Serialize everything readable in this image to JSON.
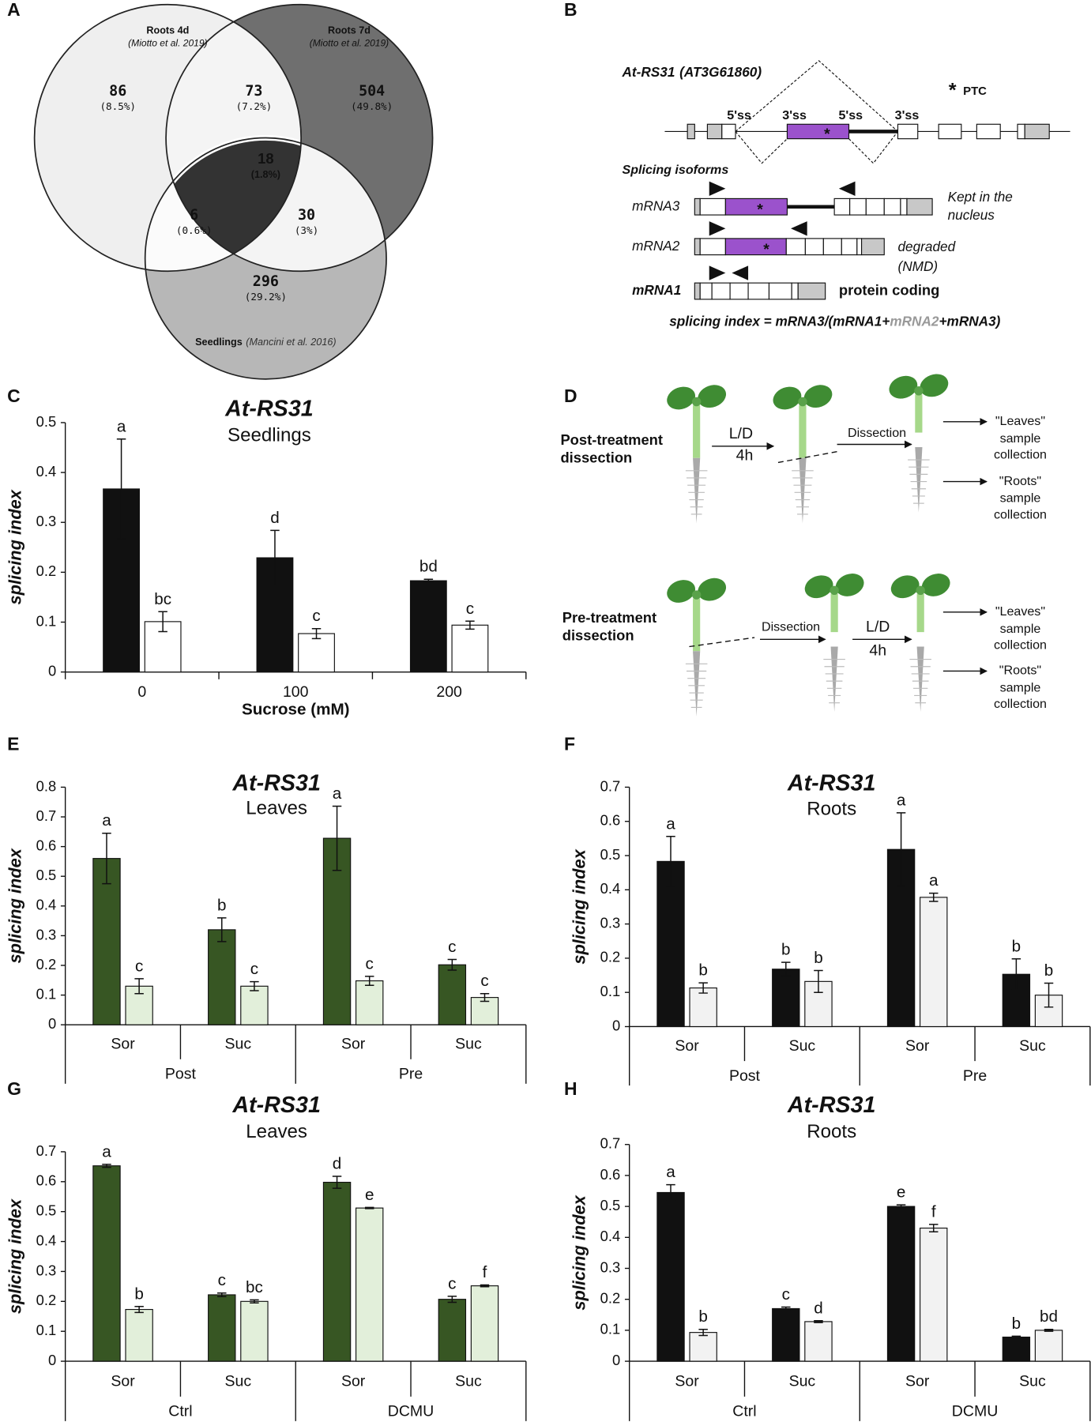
{
  "panel_labels": [
    "A",
    "B",
    "C",
    "D",
    "E",
    "F",
    "G",
    "H"
  ],
  "chart_data": [
    {
      "type": "venn",
      "sets": [
        {
          "name": "Roots 4d",
          "source": "(Miotto et al. 2019)",
          "color": "#efefef"
        },
        {
          "name": "Roots 7d",
          "source": "(Miotto et al. 2019)",
          "color": "#6f6f6f"
        },
        {
          "name": "Seedlings",
          "source": "(Mancini et al. 2016)",
          "color": "#b7b7b7"
        }
      ],
      "counts": [
        86,
        504,
        296,
        73,
        6,
        30,
        18
      ],
      "percent_labels": [
        "(8.5%)",
        "(49.8%)",
        "(29.2%)",
        "(7.2%)",
        "(0.6%)",
        "(3%)",
        "(1.8%)"
      ]
    },
    {
      "type": "bar",
      "title": "At-RS31",
      "subtitle": "Seedlings",
      "ylabel": "splicing index",
      "xlabel": "Sucrose (mM)",
      "categories": [
        "0",
        "100",
        "200"
      ],
      "series": [
        {
          "color": "#111111",
          "values": [
            0.367,
            0.229,
            0.183
          ],
          "errors": [
            0.1,
            0.055,
            0.003
          ],
          "letters": [
            "a",
            "d",
            "bd"
          ]
        },
        {
          "color": "#ffffff",
          "values": [
            0.101,
            0.077,
            0.094
          ],
          "errors": [
            0.02,
            0.01,
            0.008
          ],
          "letters": [
            "bc",
            "c",
            "c"
          ]
        }
      ],
      "ylim": [
        0,
        0.5
      ],
      "yticks": [
        0,
        0.1,
        0.2,
        0.3,
        0.4,
        0.5
      ]
    },
    {
      "type": "bar",
      "title": "At-RS31",
      "subtitle": "Leaves",
      "ylabel": "splicing index",
      "categories": [
        "Sor",
        "Suc",
        "Sor",
        "Suc"
      ],
      "groups": [
        "Post",
        "Pre"
      ],
      "series": [
        {
          "color": "#375623",
          "values": [
            0.56,
            0.32,
            0.628,
            0.202
          ],
          "errors": [
            0.085,
            0.04,
            0.108,
            0.018
          ],
          "letters": [
            "a",
            "b",
            "a",
            "c"
          ]
        },
        {
          "color": "#e2efda",
          "values": [
            0.13,
            0.13,
            0.148,
            0.092
          ],
          "errors": [
            0.025,
            0.015,
            0.015,
            0.013
          ],
          "letters": [
            "c",
            "c",
            "c",
            "c"
          ]
        }
      ],
      "ylim": [
        0,
        0.8
      ],
      "yticks": [
        0,
        0.1,
        0.2,
        0.3,
        0.4,
        0.5,
        0.6,
        0.7,
        0.8
      ]
    },
    {
      "type": "bar",
      "title": "At-RS31",
      "subtitle": "Roots",
      "ylabel": "splicing index",
      "categories": [
        "Sor",
        "Suc",
        "Sor",
        "Suc"
      ],
      "groups": [
        "Post",
        "Pre"
      ],
      "series": [
        {
          "color": "#111111",
          "values": [
            0.483,
            0.168,
            0.518,
            0.153
          ],
          "errors": [
            0.073,
            0.02,
            0.107,
            0.045
          ],
          "letters": [
            "a",
            "b",
            "a",
            "b"
          ]
        },
        {
          "color": "#f2f2f2",
          "values": [
            0.113,
            0.132,
            0.378,
            0.092
          ],
          "errors": [
            0.015,
            0.032,
            0.012,
            0.035
          ],
          "letters": [
            "b",
            "b",
            "a",
            "b"
          ]
        }
      ],
      "ylim": [
        0,
        0.7
      ],
      "yticks": [
        0,
        0.1,
        0.2,
        0.3,
        0.4,
        0.5,
        0.6,
        0.7
      ]
    },
    {
      "type": "bar",
      "title": "At-RS31",
      "subtitle": "Leaves",
      "ylabel": "splicing index",
      "categories": [
        "Sor",
        "Suc",
        "Sor",
        "Suc"
      ],
      "groups": [
        "Ctrl",
        "DCMU"
      ],
      "series": [
        {
          "color": "#375623",
          "values": [
            0.653,
            0.222,
            0.598,
            0.207
          ],
          "errors": [
            0.005,
            0.006,
            0.02,
            0.01
          ],
          "letters": [
            "a",
            "c",
            "d",
            "c"
          ]
        },
        {
          "color": "#e2efda",
          "values": [
            0.173,
            0.2,
            0.512,
            0.252
          ],
          "errors": [
            0.01,
            0.005,
            0.002,
            0.003
          ],
          "letters": [
            "b",
            "bc",
            "e",
            "f"
          ]
        }
      ],
      "ylim": [
        0,
        0.7
      ],
      "yticks": [
        0,
        0.1,
        0.2,
        0.3,
        0.4,
        0.5,
        0.6,
        0.7
      ]
    },
    {
      "type": "bar",
      "title": "At-RS31",
      "subtitle": "Roots",
      "ylabel": "splicing index",
      "categories": [
        "Sor",
        "Suc",
        "Sor",
        "Suc"
      ],
      "groups": [
        "Ctrl",
        "DCMU"
      ],
      "series": [
        {
          "color": "#111111",
          "values": [
            0.545,
            0.17,
            0.5,
            0.078
          ],
          "errors": [
            0.025,
            0.005,
            0.005,
            0.003
          ],
          "letters": [
            "a",
            "c",
            "e",
            "b"
          ]
        },
        {
          "color": "#f2f2f2",
          "values": [
            0.093,
            0.128,
            0.43,
            0.1
          ],
          "errors": [
            0.01,
            0.003,
            0.012,
            0.003
          ],
          "letters": [
            "b",
            "d",
            "f",
            "bd"
          ]
        }
      ],
      "ylim": [
        0,
        0.7
      ],
      "yticks": [
        0,
        0.1,
        0.2,
        0.3,
        0.4,
        0.5,
        0.6,
        0.7
      ]
    }
  ],
  "panel_b": {
    "gene": "At-RS31",
    "locus": "(AT3G61860)",
    "star": "*",
    "ptc": "PTC",
    "sites": [
      "5'ss",
      "3'ss",
      "5'ss",
      "3'ss"
    ],
    "isoforms_title": "Splicing isoforms",
    "isoforms": [
      {
        "name": "mRNA3",
        "note": [
          "Kept in the",
          "nucleus"
        ]
      },
      {
        "name": "mRNA2",
        "note": [
          "degraded",
          "(NMD)"
        ]
      },
      {
        "name": "mRNA1",
        "note": [
          "protein coding"
        ]
      }
    ],
    "formula": [
      "splicing index = mRNA3/(mRNA1+",
      "mRNA2",
      "+mRNA3)"
    ]
  },
  "panel_d": {
    "rows": [
      {
        "title": [
          "Post-treatment",
          "dissection"
        ]
      },
      {
        "title": [
          "Pre-treatment",
          "dissection"
        ]
      }
    ],
    "light_dark": "L/D",
    "duration": "4h",
    "dissection": "Dissection",
    "leaves": "\"Leaves\"",
    "roots": "\"Roots\"",
    "collection": [
      "sample",
      "collection"
    ]
  }
}
